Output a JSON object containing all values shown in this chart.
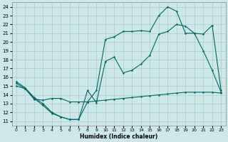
{
  "xlabel": "Humidex (Indice chaleur)",
  "bg_color": "#cce8e8",
  "grid_color": "#aacccc",
  "line_color": "#006666",
  "xlim": [
    -0.5,
    23.5
  ],
  "ylim": [
    10.5,
    24.5
  ],
  "xticks": [
    0,
    1,
    2,
    3,
    4,
    5,
    6,
    7,
    8,
    9,
    10,
    11,
    12,
    13,
    14,
    15,
    16,
    17,
    18,
    19,
    20,
    21,
    22,
    23
  ],
  "yticks": [
    11,
    12,
    13,
    14,
    15,
    16,
    17,
    18,
    19,
    20,
    21,
    22,
    23,
    24
  ],
  "line1_x": [
    0,
    1,
    2,
    3,
    4,
    5,
    6,
    7,
    8,
    9,
    10,
    11,
    12,
    13,
    14,
    15,
    16,
    17,
    18,
    19,
    20,
    21,
    22,
    23
  ],
  "line1_y": [
    15.5,
    14.8,
    13.7,
    13.0,
    12.0,
    11.5,
    11.2,
    11.2,
    13.2,
    14.5,
    20.3,
    20.6,
    21.2,
    21.2,
    21.3,
    21.2,
    23.0,
    24.0,
    23.5,
    21.0,
    21.0,
    19.0,
    16.8,
    14.3
  ],
  "line2_x": [
    0,
    1,
    2,
    3,
    4,
    5,
    6,
    7,
    8,
    9,
    10,
    11,
    12,
    13,
    14,
    15,
    16,
    17,
    18,
    19,
    20,
    21,
    22,
    23
  ],
  "line2_y": [
    15.3,
    14.7,
    13.6,
    12.8,
    11.9,
    11.5,
    11.2,
    11.2,
    14.5,
    13.1,
    17.8,
    18.3,
    16.5,
    16.8,
    17.5,
    18.5,
    20.9,
    21.2,
    22.0,
    21.8,
    21.0,
    20.9,
    21.9,
    14.5
  ],
  "line3_x": [
    0,
    1,
    2,
    3,
    4,
    5,
    6,
    7,
    8,
    9,
    10,
    11,
    12,
    13,
    14,
    15,
    16,
    17,
    18,
    19,
    20,
    21,
    22,
    23
  ],
  "line3_y": [
    15.0,
    14.7,
    13.5,
    13.4,
    13.6,
    13.6,
    13.2,
    13.2,
    13.2,
    13.3,
    13.4,
    13.5,
    13.6,
    13.7,
    13.8,
    13.9,
    14.0,
    14.1,
    14.2,
    14.3,
    14.3,
    14.3,
    14.3,
    14.2
  ]
}
